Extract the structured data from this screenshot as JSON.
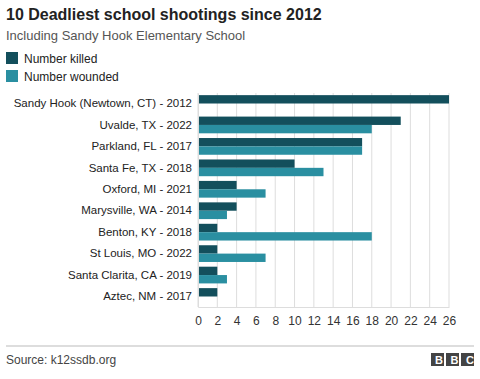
{
  "chart_data": {
    "type": "bar",
    "orientation": "horizontal",
    "title": "10 Deadliest school shootings since 2012",
    "subtitle": "Including Sandy Hook Elementary School",
    "source": "Source: k12ssdb.org",
    "logo": "BBC",
    "categories": [
      "Sandy Hook (Newtown, CT) - 2012",
      "Uvalde, TX - 2022",
      "Parkland, FL - 2017",
      "Santa Fe, TX - 2018",
      "Oxford, MI - 2021",
      "Marysville, WA - 2014",
      "Benton, KY - 2018",
      "St Louis, MO - 2022",
      "Santa Clarita, CA - 2019",
      "Aztec, NM - 2017"
    ],
    "series": [
      {
        "name": "Number killed",
        "color": "#134f5c",
        "values": [
          26,
          21,
          17,
          10,
          4,
          4,
          2,
          2,
          2,
          2
        ]
      },
      {
        "name": "Number wounded",
        "color": "#2a8fa1",
        "values": [
          0,
          18,
          17,
          13,
          7,
          3,
          18,
          7,
          3,
          0
        ]
      }
    ],
    "xlim": [
      0,
      26
    ],
    "xticks": [
      0,
      2,
      4,
      6,
      8,
      10,
      12,
      14,
      16,
      18,
      20,
      22,
      24,
      26
    ],
    "grid": true,
    "legend": "top-left"
  }
}
